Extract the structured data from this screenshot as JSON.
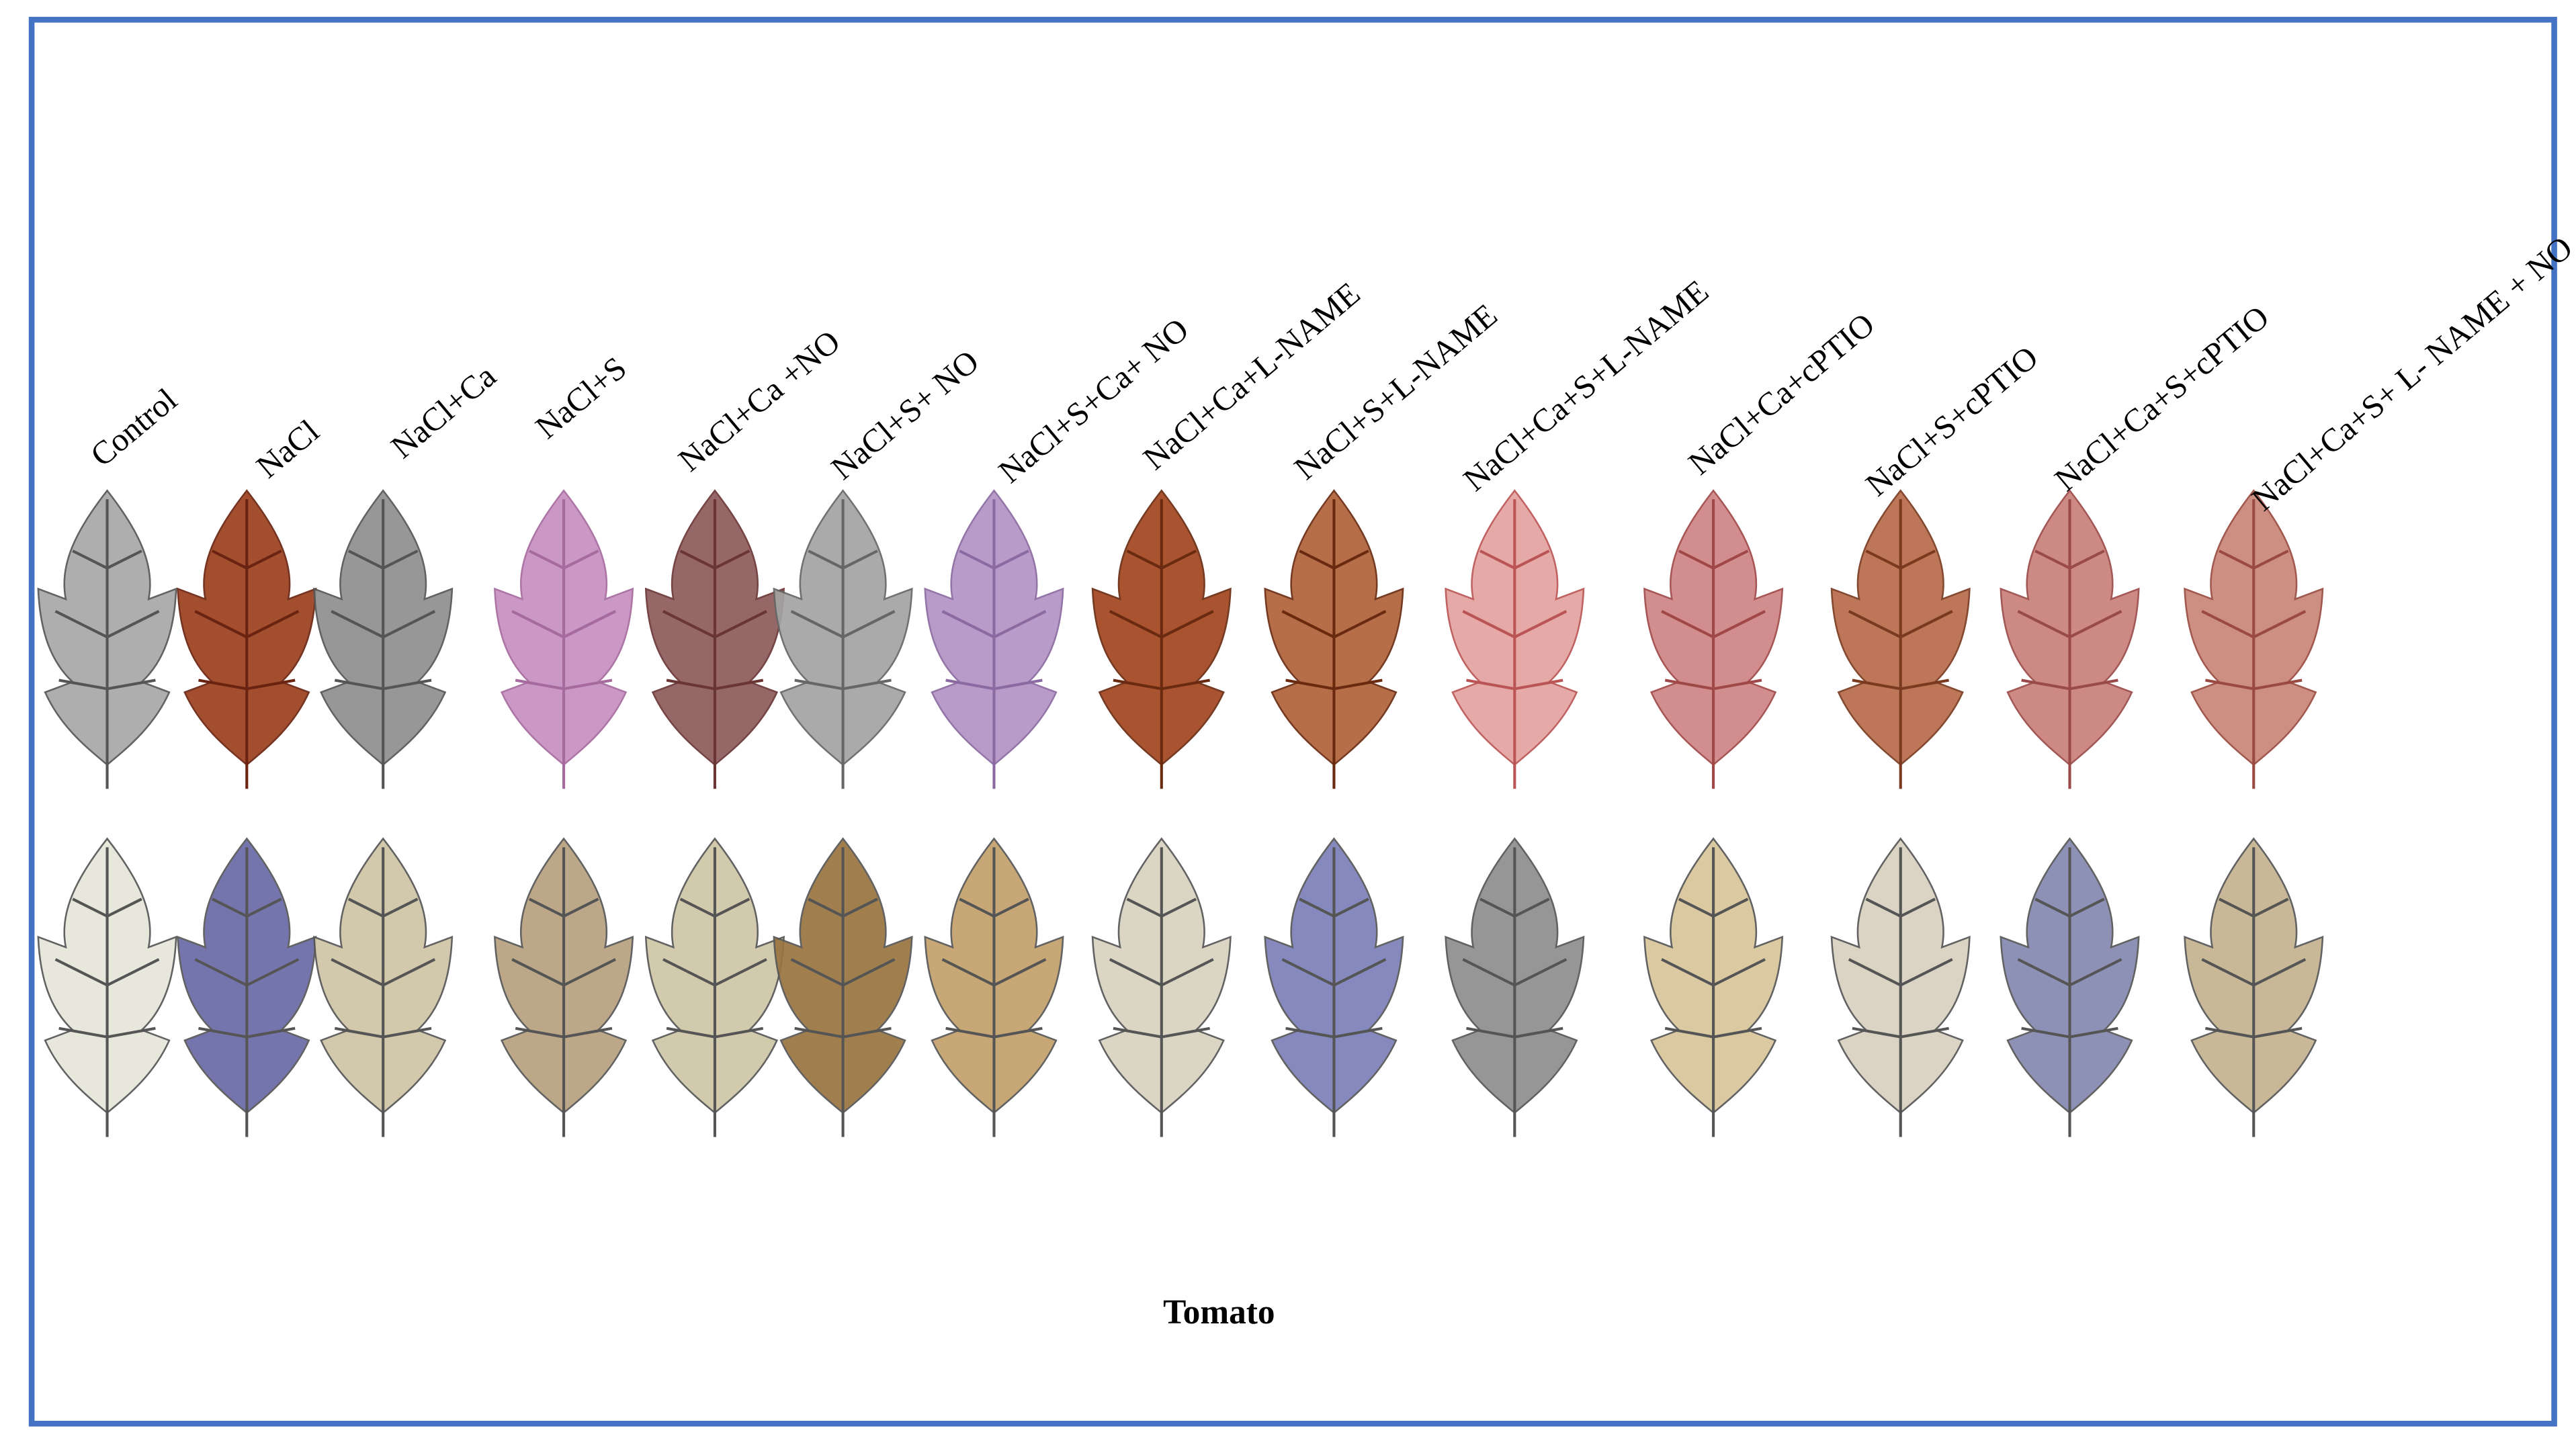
{
  "labels": [
    "Control",
    "NaCl",
    "NaCl+Ca",
    "NaCl+S",
    "NaCl+Ca +NO",
    "NaCl+S+ NO",
    "NaCl+S+Ca+ NO",
    "NaCl+Ca+L-NAME",
    "NaCl+S+L-NAME",
    "NaCl+Ca+S+L-NAME",
    "NaCl+Ca+cPTIO",
    "NaCl+S+cPTIO",
    "NaCl+Ca+S+cPTIO",
    "NaCl+Ca+S+ L- NAME + NO"
  ],
  "caption": "Tomato"
}
